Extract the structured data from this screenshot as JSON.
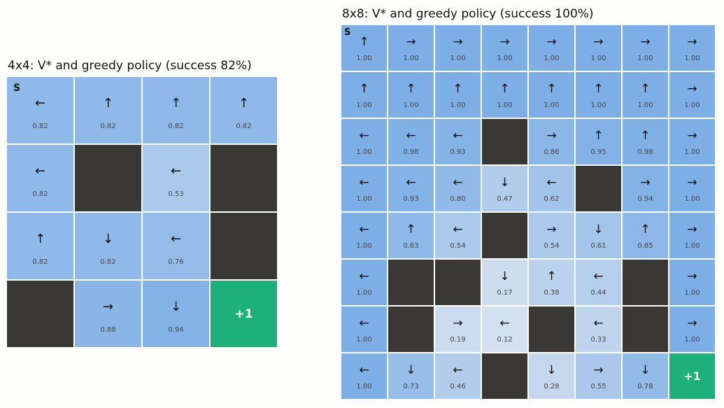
{
  "panels": [
    {
      "id": "4x4",
      "title": "4x4: V* and greedy policy (success 82%)",
      "size": 4,
      "start_label": "S",
      "goal_label": "+1",
      "cells": [
        [
          "←",
          "0.82"
        ],
        [
          "↑",
          "0.82"
        ],
        [
          "↑",
          "0.82"
        ],
        [
          "↑",
          "0.82"
        ],
        [
          "←",
          "0.82"
        ],
        [
          "#",
          ""
        ],
        [
          "←",
          "0.53"
        ],
        [
          "#",
          ""
        ],
        [
          "↑",
          "0.82"
        ],
        [
          "↓",
          "0.82"
        ],
        [
          "←",
          "0.76"
        ],
        [
          "#",
          ""
        ],
        [
          "#",
          ""
        ],
        [
          "→",
          "0.88"
        ],
        [
          "↓",
          "0.94"
        ],
        [
          "G",
          ""
        ]
      ]
    },
    {
      "id": "8x8",
      "title": "8x8: V* and greedy policy (success 100%)",
      "size": 8,
      "start_label": "S",
      "goal_label": "+1",
      "cells": [
        [
          "↑",
          "1.00"
        ],
        [
          "→",
          "1.00"
        ],
        [
          "→",
          "1.00"
        ],
        [
          "→",
          "1.00"
        ],
        [
          "→",
          "1.00"
        ],
        [
          "→",
          "1.00"
        ],
        [
          "→",
          "1.00"
        ],
        [
          "→",
          "1.00"
        ],
        [
          "↑",
          "1.00"
        ],
        [
          "↑",
          "1.00"
        ],
        [
          "↑",
          "1.00"
        ],
        [
          "↑",
          "1.00"
        ],
        [
          "↑",
          "1.00"
        ],
        [
          "↑",
          "1.00"
        ],
        [
          "↑",
          "1.00"
        ],
        [
          "→",
          "1.00"
        ],
        [
          "←",
          "1.00"
        ],
        [
          "←",
          "0.98"
        ],
        [
          "←",
          "0.93"
        ],
        [
          "#",
          ""
        ],
        [
          "→",
          "0.86"
        ],
        [
          "↑",
          "0.95"
        ],
        [
          "↑",
          "0.98"
        ],
        [
          "→",
          "1.00"
        ],
        [
          "←",
          "1.00"
        ],
        [
          "←",
          "0.93"
        ],
        [
          "←",
          "0.80"
        ],
        [
          "↓",
          "0.47"
        ],
        [
          "←",
          "0.62"
        ],
        [
          "#",
          ""
        ],
        [
          "→",
          "0.94"
        ],
        [
          "→",
          "1.00"
        ],
        [
          "←",
          "1.00"
        ],
        [
          "↑",
          "0.83"
        ],
        [
          "←",
          "0.54"
        ],
        [
          "#",
          ""
        ],
        [
          "→",
          "0.54"
        ],
        [
          "↓",
          "0.61"
        ],
        [
          "↑",
          "0.85"
        ],
        [
          "→",
          "1.00"
        ],
        [
          "←",
          "1.00"
        ],
        [
          "#",
          ""
        ],
        [
          "#",
          ""
        ],
        [
          "↓",
          "0.17"
        ],
        [
          "↑",
          "0.38"
        ],
        [
          "←",
          "0.44"
        ],
        [
          "#",
          ""
        ],
        [
          "→",
          "1.00"
        ],
        [
          "←",
          "1.00"
        ],
        [
          "#",
          ""
        ],
        [
          "→",
          "0.19"
        ],
        [
          "←",
          "0.12"
        ],
        [
          "#",
          ""
        ],
        [
          "←",
          "0.33"
        ],
        [
          "#",
          ""
        ],
        [
          "→",
          "1.00"
        ],
        [
          "←",
          "1.00"
        ],
        [
          "↓",
          "0.73"
        ],
        [
          "←",
          "0.46"
        ],
        [
          "#",
          ""
        ],
        [
          "↓",
          "0.28"
        ],
        [
          "→",
          "0.55"
        ],
        [
          "↓",
          "0.78"
        ],
        [
          "G",
          ""
        ]
      ]
    }
  ],
  "colors": {
    "wall": "#3a3834",
    "goal": "#1db07a",
    "value_low": "#dfe7f0",
    "value_high": "#7dafe6"
  }
}
